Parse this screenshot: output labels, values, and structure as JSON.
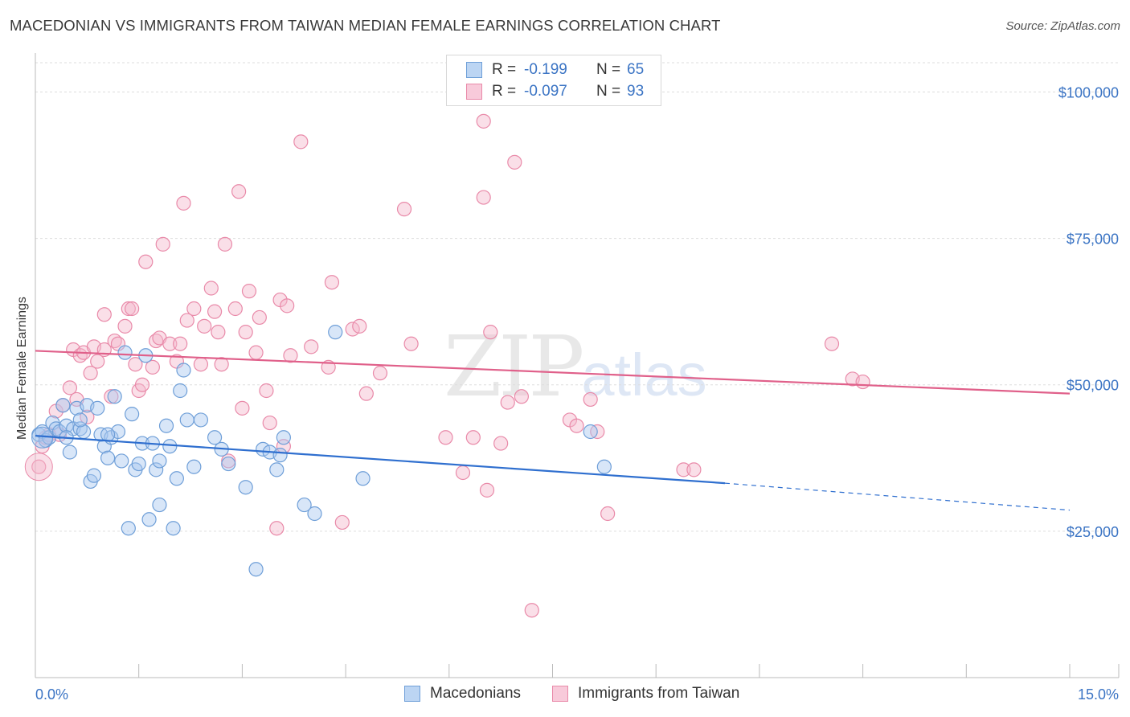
{
  "title": "MACEDONIAN VS IMMIGRANTS FROM TAIWAN MEDIAN FEMALE EARNINGS CORRELATION CHART",
  "source": "Source: ZipAtlas.com",
  "watermark": {
    "zip": "ZIP",
    "atlas": "atlas"
  },
  "legend": {
    "r_label": "R =",
    "n_label": "N =",
    "series": [
      {
        "name": "Macedonians",
        "r": "-0.199",
        "n": "65"
      },
      {
        "name": "Immigrants from Taiwan",
        "r": "-0.097",
        "n": "93"
      }
    ]
  },
  "colors": {
    "blue_fill": "#a9c8ef",
    "blue_stroke": "#6f9fd8",
    "blue_line": "#2f6fcf",
    "pink_fill": "#f5b8cc",
    "pink_stroke": "#e98aa9",
    "pink_line": "#e0608a",
    "grid": "#dddddd",
    "axis_text": "#3b74c4"
  },
  "chart_data": {
    "type": "scatter",
    "title": "MACEDONIAN VS IMMIGRANTS FROM TAIWAN MEDIAN FEMALE EARNINGS CORRELATION CHART",
    "xlabel": "",
    "ylabel": "Median Female Earnings",
    "xlim": [
      0,
      15
    ],
    "ylim": [
      0,
      105000
    ],
    "x_tick_labels": [
      "0.0%",
      "15.0%"
    ],
    "y_ticks": [
      {
        "value": 25000,
        "label": "$25,000"
      },
      {
        "value": 50000,
        "label": "$50,000"
      },
      {
        "value": 75000,
        "label": "$75,000"
      },
      {
        "value": 100000,
        "label": "$100,000"
      }
    ],
    "series": [
      {
        "name": "Macedonians",
        "color": "blue",
        "trend": {
          "x0": 0.0,
          "y0": 41300,
          "x1": 10.0,
          "y1": 33200,
          "dash_to_x": 15.0,
          "dash_to_y": 28600
        },
        "points": [
          [
            0.05,
            41500
          ],
          [
            0.1,
            42000
          ],
          [
            0.15,
            40500
          ],
          [
            0.2,
            41000
          ],
          [
            0.25,
            43500
          ],
          [
            0.3,
            42500
          ],
          [
            0.35,
            42000
          ],
          [
            0.4,
            46500
          ],
          [
            0.45,
            43000
          ],
          [
            0.5,
            38500
          ],
          [
            0.55,
            42500
          ],
          [
            0.6,
            46000
          ],
          [
            0.65,
            42500
          ],
          [
            0.7,
            42000
          ],
          [
            0.75,
            46500
          ],
          [
            0.8,
            33500
          ],
          [
            0.85,
            34500
          ],
          [
            0.9,
            46000
          ],
          [
            0.95,
            41500
          ],
          [
            1.0,
            39500
          ],
          [
            1.05,
            37500
          ],
          [
            1.1,
            41000
          ],
          [
            1.15,
            48000
          ],
          [
            1.2,
            42000
          ],
          [
            1.25,
            37000
          ],
          [
            1.3,
            55500
          ],
          [
            1.35,
            25500
          ],
          [
            1.4,
            45000
          ],
          [
            1.45,
            35500
          ],
          [
            1.5,
            36500
          ],
          [
            1.55,
            40000
          ],
          [
            1.6,
            55000
          ],
          [
            1.65,
            27000
          ],
          [
            1.7,
            40000
          ],
          [
            1.75,
            35500
          ],
          [
            1.8,
            37000
          ],
          [
            1.8,
            29500
          ],
          [
            1.9,
            43000
          ],
          [
            1.95,
            39500
          ],
          [
            2.0,
            25500
          ],
          [
            2.05,
            34000
          ],
          [
            2.1,
            49000
          ],
          [
            2.15,
            52500
          ],
          [
            2.2,
            44000
          ],
          [
            2.3,
            36000
          ],
          [
            2.4,
            44000
          ],
          [
            2.6,
            41000
          ],
          [
            2.7,
            39000
          ],
          [
            2.8,
            36500
          ],
          [
            3.05,
            32500
          ],
          [
            3.2,
            18500
          ],
          [
            3.3,
            39000
          ],
          [
            3.4,
            38500
          ],
          [
            3.5,
            35500
          ],
          [
            3.55,
            38000
          ],
          [
            3.6,
            41000
          ],
          [
            3.9,
            29500
          ],
          [
            4.05,
            28000
          ],
          [
            4.35,
            59000
          ],
          [
            4.75,
            34000
          ],
          [
            8.05,
            42000
          ],
          [
            8.25,
            36000
          ],
          [
            0.45,
            41000
          ],
          [
            0.65,
            44000
          ],
          [
            1.05,
            41500
          ]
        ]
      },
      {
        "name": "Immigrants from Taiwan",
        "color": "pink",
        "trend": {
          "x0": 0.0,
          "y0": 55800,
          "x1": 15.0,
          "y1": 48500
        },
        "points": [
          [
            0.05,
            36000
          ],
          [
            0.1,
            39500
          ],
          [
            0.15,
            41000
          ],
          [
            0.2,
            41500
          ],
          [
            0.3,
            45500
          ],
          [
            0.4,
            46500
          ],
          [
            0.5,
            49500
          ],
          [
            0.55,
            56000
          ],
          [
            0.6,
            47500
          ],
          [
            0.65,
            55000
          ],
          [
            0.7,
            55500
          ],
          [
            0.75,
            44500
          ],
          [
            0.8,
            52000
          ],
          [
            0.85,
            56500
          ],
          [
            0.9,
            54000
          ],
          [
            1.0,
            56000
          ],
          [
            1.0,
            62000
          ],
          [
            1.1,
            48000
          ],
          [
            1.15,
            57500
          ],
          [
            1.2,
            57000
          ],
          [
            1.3,
            60000
          ],
          [
            1.35,
            63000
          ],
          [
            1.4,
            63000
          ],
          [
            1.45,
            53500
          ],
          [
            1.5,
            49000
          ],
          [
            1.55,
            50000
          ],
          [
            1.6,
            71000
          ],
          [
            1.7,
            53000
          ],
          [
            1.75,
            57500
          ],
          [
            1.8,
            58000
          ],
          [
            1.85,
            74000
          ],
          [
            1.95,
            57000
          ],
          [
            2.05,
            54000
          ],
          [
            2.1,
            57000
          ],
          [
            2.15,
            81000
          ],
          [
            2.2,
            61000
          ],
          [
            2.3,
            63000
          ],
          [
            2.4,
            53500
          ],
          [
            2.45,
            60000
          ],
          [
            2.55,
            66500
          ],
          [
            2.6,
            62500
          ],
          [
            2.65,
            59000
          ],
          [
            2.7,
            53500
          ],
          [
            2.75,
            74000
          ],
          [
            2.8,
            37000
          ],
          [
            2.9,
            63000
          ],
          [
            2.95,
            83000
          ],
          [
            3.0,
            46000
          ],
          [
            3.05,
            59000
          ],
          [
            3.1,
            66000
          ],
          [
            3.2,
            55500
          ],
          [
            3.25,
            61500
          ],
          [
            3.35,
            49000
          ],
          [
            3.4,
            43500
          ],
          [
            3.5,
            25500
          ],
          [
            3.55,
            64500
          ],
          [
            3.6,
            39500
          ],
          [
            3.65,
            63500
          ],
          [
            3.7,
            55000
          ],
          [
            3.85,
            91500
          ],
          [
            4.0,
            56500
          ],
          [
            4.25,
            53000
          ],
          [
            4.3,
            67500
          ],
          [
            4.45,
            26500
          ],
          [
            4.6,
            59500
          ],
          [
            4.7,
            60000
          ],
          [
            4.8,
            48500
          ],
          [
            5.0,
            52000
          ],
          [
            5.35,
            80000
          ],
          [
            5.45,
            57000
          ],
          [
            5.95,
            41000
          ],
          [
            6.2,
            35000
          ],
          [
            6.35,
            41000
          ],
          [
            6.5,
            82000
          ],
          [
            6.55,
            32000
          ],
          [
            6.6,
            59000
          ],
          [
            6.75,
            40000
          ],
          [
            6.85,
            47000
          ],
          [
            6.95,
            88000
          ],
          [
            7.05,
            48000
          ],
          [
            7.2,
            11500
          ],
          [
            7.75,
            44000
          ],
          [
            7.85,
            43000
          ],
          [
            8.05,
            47500
          ],
          [
            8.15,
            42000
          ],
          [
            8.3,
            28000
          ],
          [
            9.4,
            35500
          ],
          [
            9.55,
            35500
          ],
          [
            11.55,
            57000
          ],
          [
            11.85,
            51000
          ],
          [
            12.0,
            50500
          ],
          [
            6.5,
            95000
          ],
          [
            0.35,
            41500
          ]
        ]
      }
    ]
  }
}
